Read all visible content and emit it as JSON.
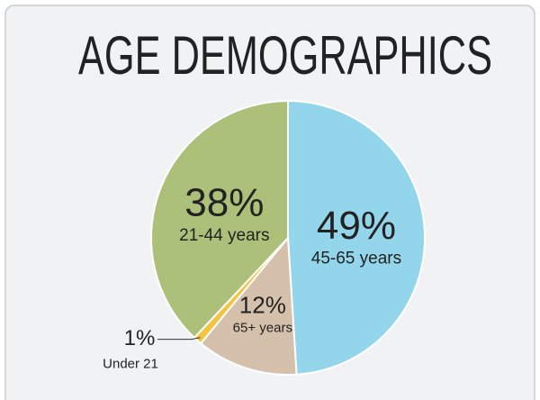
{
  "chart_data": {
    "type": "pie",
    "title": "AGE DEMOGRAPHICS",
    "categories": [
      "45-65 years",
      "65+ years",
      "Under 21",
      "21-44 years"
    ],
    "values": [
      49,
      12,
      1,
      38
    ],
    "value_labels": [
      "49%",
      "12%",
      "1%",
      "38%"
    ],
    "colors": [
      "#93d5ea",
      "#d5c1ab",
      "#f5c342",
      "#adc07a"
    ]
  }
}
